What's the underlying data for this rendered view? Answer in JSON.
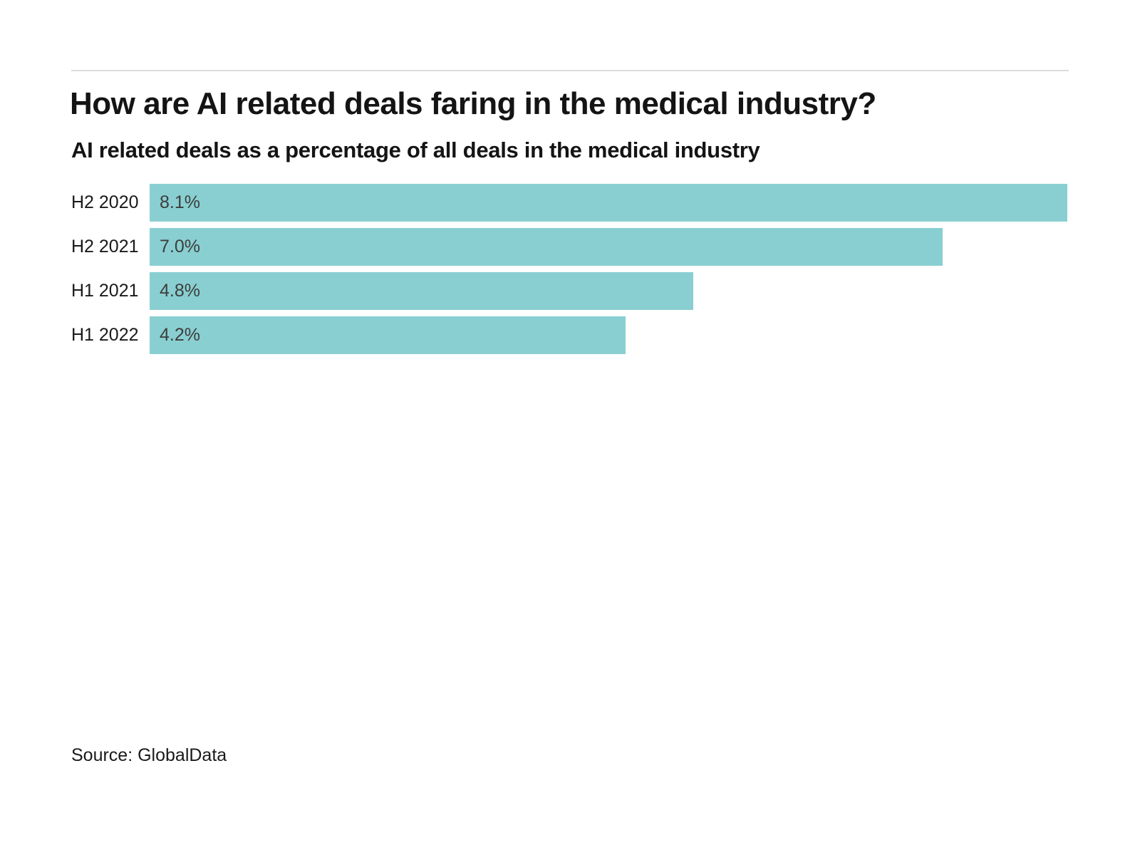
{
  "page": {
    "title": "How are AI related deals faring in the medical industry?",
    "subtitle": "AI related deals as a percentage of all deals in the medical industry",
    "source": "Source: GlobalData"
  },
  "chart_data": {
    "type": "bar",
    "orientation": "horizontal",
    "title": "How are AI related deals faring in the medical industry?",
    "subtitle": "AI related deals as a percentage of all deals in the medical industry",
    "categories": [
      "H2 2020",
      "H2 2021",
      "H1 2021",
      "H1 2022"
    ],
    "values": [
      8.1,
      7.0,
      4.8,
      4.2
    ],
    "value_labels": [
      "8.1%",
      "7.0%",
      "4.8%",
      "4.2%"
    ],
    "xlabel": "",
    "ylabel": "",
    "xlim": [
      0,
      8.1
    ],
    "grid": false,
    "legend": false,
    "bar_color": "#89cfd1",
    "value_label_color": "#3d3d3d",
    "source": "Source: GlobalData"
  }
}
